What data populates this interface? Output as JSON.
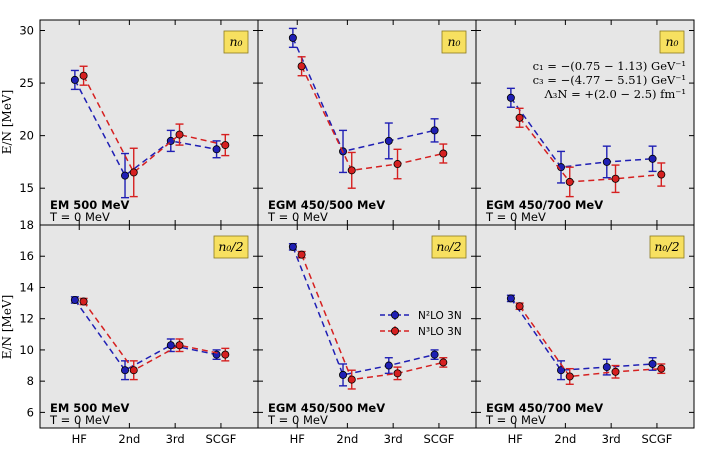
{
  "chart_data": {
    "type": "scatter",
    "x_categories": [
      "HF",
      "2nd",
      "3rd",
      "SCGF"
    ],
    "y_axis_label": "E/N [MeV]",
    "colors": {
      "n2lo": "#1f1fb4",
      "n3lo": "#d62020",
      "panel_bg": "#e6e6e6",
      "density_box": "#f7e060"
    },
    "legend": {
      "location": "center-right",
      "panel": "middle-bottom",
      "entries": [
        "N²LO 3N",
        "N³LO 3N"
      ]
    },
    "lec_annotation": [
      "c₁ = −(0.75 − 1.13) GeV⁻¹",
      "c₃ = −(4.77 − 5.51) GeV⁻¹",
      "Λ₃N = +(2.0 − 2.5) fm⁻¹"
    ],
    "rows": [
      {
        "density_label": "n₀",
        "ylim": [
          11.5,
          31
        ],
        "yticks": [
          15,
          20,
          25,
          30
        ],
        "panels": [
          {
            "model_label": "EM 500 MeV",
            "temperature_label": "T = 0 MeV",
            "series": [
              {
                "name": "N²LO 3N",
                "values": [
                  25.3,
                  16.2,
                  19.5,
                  18.7
                ],
                "errors": [
                  0.9,
                  2.1,
                  1.0,
                  0.8
                ]
              },
              {
                "name": "N³LO 3N",
                "values": [
                  25.7,
                  16.5,
                  20.1,
                  19.1
                ],
                "errors": [
                  0.9,
                  2.3,
                  1.0,
                  1.0
                ]
              }
            ]
          },
          {
            "model_label": "EGM 450/500 MeV",
            "temperature_label": "T = 0 MeV",
            "series": [
              {
                "name": "N²LO 3N",
                "values": [
                  29.3,
                  18.5,
                  19.5,
                  20.5
                ],
                "errors": [
                  0.9,
                  2.0,
                  1.7,
                  1.1
                ]
              },
              {
                "name": "N³LO 3N",
                "values": [
                  26.6,
                  16.7,
                  17.3,
                  18.3
                ],
                "errors": [
                  0.9,
                  1.7,
                  1.4,
                  0.9
                ]
              }
            ]
          },
          {
            "model_label": "EGM 450/700 MeV",
            "temperature_label": "T = 0 MeV",
            "series": [
              {
                "name": "N²LO 3N",
                "values": [
                  23.6,
                  17.0,
                  17.5,
                  17.8
                ],
                "errors": [
                  0.9,
                  1.5,
                  1.5,
                  1.2
                ]
              },
              {
                "name": "N³LO 3N",
                "values": [
                  21.7,
                  15.6,
                  15.9,
                  16.3
                ],
                "errors": [
                  0.9,
                  1.4,
                  1.3,
                  1.1
                ]
              }
            ]
          }
        ]
      },
      {
        "density_label": "n₀/2",
        "ylim": [
          5,
          18
        ],
        "yticks": [
          6,
          8,
          10,
          12,
          14,
          16,
          18
        ],
        "panels": [
          {
            "model_label": "EM 500 MeV",
            "temperature_label": "T = 0 MeV",
            "series": [
              {
                "name": "N²LO 3N",
                "values": [
                  13.2,
                  8.7,
                  10.3,
                  9.7
                ],
                "errors": [
                  0.2,
                  0.6,
                  0.4,
                  0.3
                ]
              },
              {
                "name": "N³LO 3N",
                "values": [
                  13.1,
                  8.7,
                  10.3,
                  9.7
                ],
                "errors": [
                  0.2,
                  0.6,
                  0.4,
                  0.4
                ]
              }
            ]
          },
          {
            "model_label": "EGM 450/500 MeV",
            "temperature_label": "T = 0 MeV",
            "series": [
              {
                "name": "N²LO 3N",
                "values": [
                  16.6,
                  8.4,
                  9.0,
                  9.7
                ],
                "errors": [
                  0.2,
                  0.7,
                  0.5,
                  0.3
                ]
              },
              {
                "name": "N³LO 3N",
                "values": [
                  16.1,
                  8.1,
                  8.5,
                  9.2
                ],
                "errors": [
                  0.2,
                  0.6,
                  0.4,
                  0.3
                ]
              }
            ]
          },
          {
            "model_label": "EGM 450/700 MeV",
            "temperature_label": "T = 0 MeV",
            "series": [
              {
                "name": "N²LO 3N",
                "values": [
                  13.3,
                  8.7,
                  8.9,
                  9.1
                ],
                "errors": [
                  0.2,
                  0.6,
                  0.5,
                  0.4
                ]
              },
              {
                "name": "N³LO 3N",
                "values": [
                  12.8,
                  8.3,
                  8.6,
                  8.8
                ],
                "errors": [
                  0.2,
                  0.5,
                  0.4,
                  0.3
                ]
              }
            ]
          }
        ]
      }
    ]
  }
}
